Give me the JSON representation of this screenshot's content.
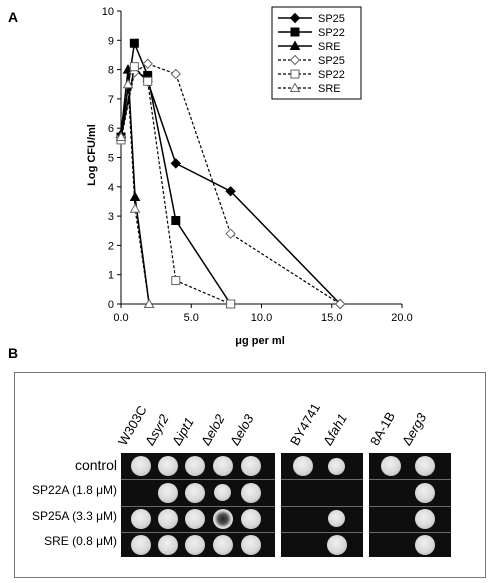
{
  "panel_a_label": "A",
  "panel_b_label": "B",
  "chart_data": {
    "type": "line",
    "xlabel": "μg per ml",
    "ylabel": "Log CFU/ml",
    "xlim": [
      0,
      20
    ],
    "ylim": [
      0,
      10
    ],
    "x_ticks": [
      "0.0",
      "5.0",
      "10.0",
      "15.0",
      "20.0"
    ],
    "y_ticks": [
      "0",
      "1",
      "2",
      "3",
      "4",
      "5",
      "6",
      "7",
      "8",
      "9",
      "10"
    ],
    "legend_position": "top-right",
    "grid": false,
    "series": [
      {
        "name": "SP25",
        "marker": "filled-diamond",
        "line": "solid",
        "points": [
          [
            0,
            5.7
          ],
          [
            0.95,
            8.05
          ],
          [
            1.9,
            7.6
          ],
          [
            3.9,
            4.8
          ],
          [
            7.8,
            3.85
          ],
          [
            15.6,
            0
          ]
        ]
      },
      {
        "name": "SP22",
        "marker": "filled-square",
        "line": "solid",
        "points": [
          [
            0,
            5.7
          ],
          [
            0.95,
            8.9
          ],
          [
            1.9,
            7.8
          ],
          [
            3.9,
            2.85
          ],
          [
            7.8,
            0
          ]
        ]
      },
      {
        "name": "SRE",
        "marker": "filled-triangle",
        "line": "solid",
        "points": [
          [
            0,
            5.8
          ],
          [
            0.5,
            8.0
          ],
          [
            1.0,
            3.65
          ],
          [
            2.0,
            0
          ]
        ]
      },
      {
        "name": "SP25",
        "marker": "open-diamond",
        "line": "dashed",
        "points": [
          [
            0,
            5.6
          ],
          [
            0.95,
            7.9
          ],
          [
            1.9,
            8.2
          ],
          [
            3.9,
            7.85
          ],
          [
            7.8,
            2.4
          ],
          [
            15.6,
            0
          ]
        ]
      },
      {
        "name": "SP22",
        "marker": "open-square",
        "line": "dashed",
        "points": [
          [
            0,
            5.6
          ],
          [
            0.95,
            8.1
          ],
          [
            1.9,
            7.6
          ],
          [
            3.9,
            0.8
          ],
          [
            7.8,
            0
          ]
        ]
      },
      {
        "name": "SRE",
        "marker": "open-triangle",
        "line": "dashed",
        "points": [
          [
            0,
            5.7
          ],
          [
            0.5,
            7.5
          ],
          [
            1.0,
            3.25
          ],
          [
            2.0,
            0
          ]
        ]
      }
    ]
  },
  "panel_b": {
    "group1": {
      "strains": [
        {
          "prefix": "",
          "name": "W303C"
        },
        {
          "prefix": "Δ",
          "name": "syr2"
        },
        {
          "prefix": "Δ",
          "name": "ipt1"
        },
        {
          "prefix": "Δ",
          "name": "elo2"
        },
        {
          "prefix": "Δ",
          "name": "elo3"
        }
      ]
    },
    "group2": {
      "strains": [
        {
          "prefix": "",
          "name": "BY4741"
        },
        {
          "prefix": "Δ",
          "name": "fah1"
        }
      ]
    },
    "group3": {
      "strains": [
        {
          "prefix": "",
          "name": "8A-1B"
        },
        {
          "prefix": "Δ",
          "name": "erg3"
        }
      ]
    },
    "rows": [
      "control",
      "SP22A (1.8 μM)",
      "SP25A (3.3 μM)",
      "SRE (0.8 μM)"
    ]
  }
}
